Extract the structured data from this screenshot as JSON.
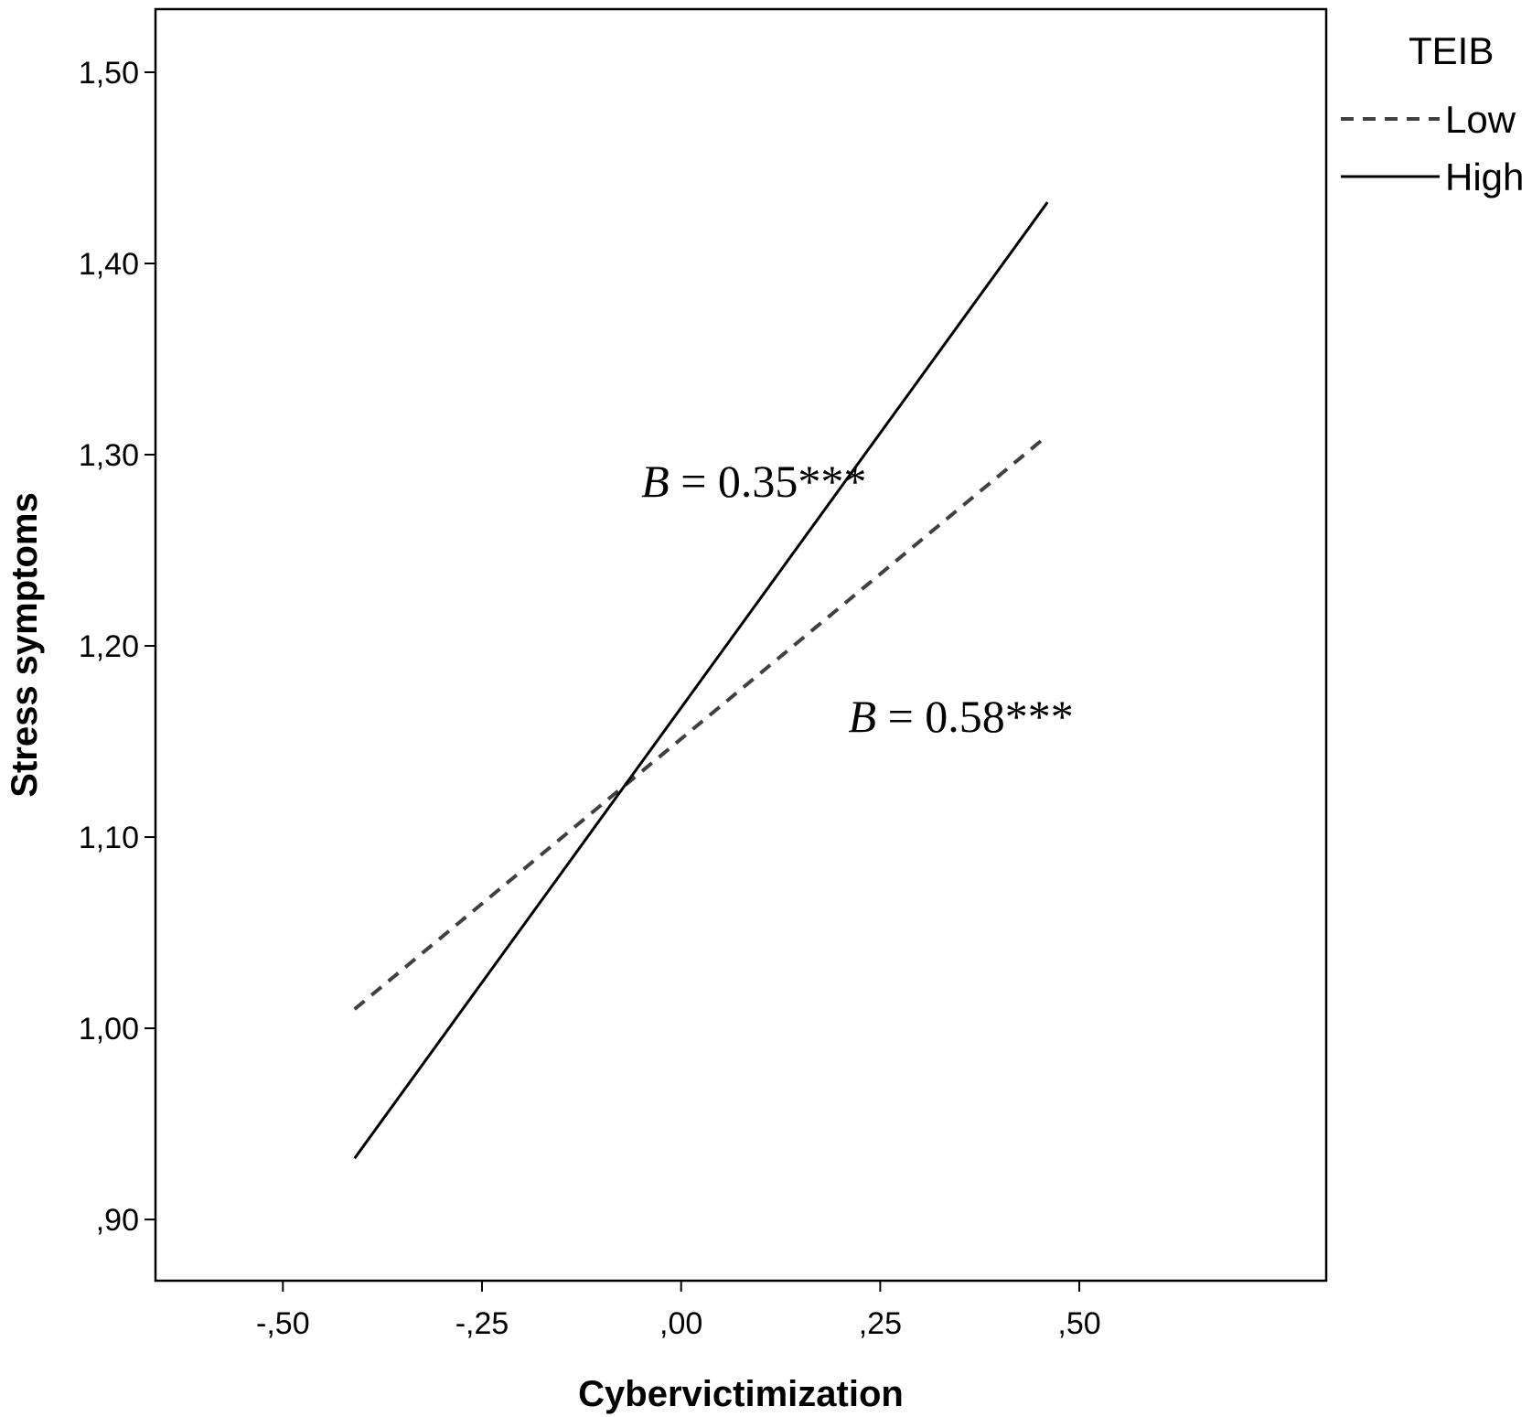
{
  "chart_data": {
    "type": "line",
    "title": "",
    "xlabel": "Cybervictimization",
    "ylabel": "Stress symptoms",
    "xlim": [
      -0.66,
      0.81
    ],
    "ylim": [
      0.868,
      1.533
    ],
    "x_ticks": [
      -0.5,
      -0.25,
      0.0,
      0.25,
      0.5
    ],
    "x_tick_labels": [
      "-,50",
      "-,25",
      ",00",
      ",25",
      ",50"
    ],
    "y_ticks": [
      0.9,
      1.0,
      1.1,
      1.2,
      1.3,
      1.4,
      1.5
    ],
    "y_tick_labels": [
      ",90",
      "1,00",
      "1,10",
      "1,20",
      "1,30",
      "1,40",
      "1,50"
    ],
    "grid": false,
    "legend": {
      "title": "TEIB",
      "placement": "top-right, outside plot"
    },
    "series": [
      {
        "name": "Low",
        "style": "dashed",
        "color": "#404040",
        "x": [
          -0.41,
          0.46
        ],
        "y": [
          1.01,
          1.31
        ]
      },
      {
        "name": "High",
        "style": "solid",
        "color": "#000000",
        "x": [
          -0.41,
          0.46
        ],
        "y": [
          0.932,
          1.432
        ]
      }
    ],
    "annotations": [
      {
        "b": "B",
        "rest": " = 0.35***",
        "x": -0.05,
        "y": 1.278
      },
      {
        "b": "B",
        "rest": " = 0.58***",
        "x": 0.21,
        "y": 1.155
      }
    ]
  }
}
